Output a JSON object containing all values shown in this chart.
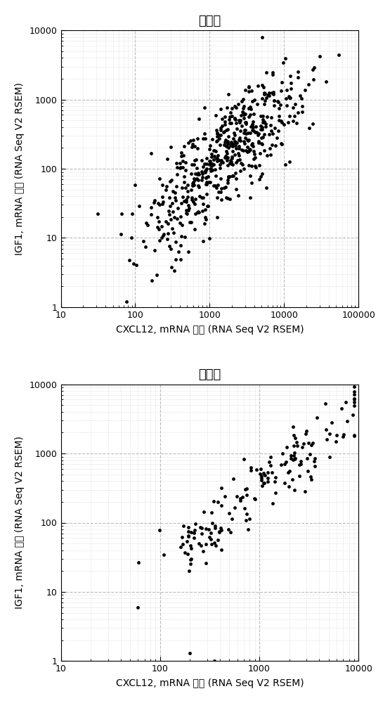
{
  "title1": "乳腺癌",
  "title2": "胰腺癌",
  "xlabel": "CXCL12, mRNA 表达 (RNA Seq V2 RSEM)",
  "ylabel": "IGF1, mRNA 表达 (RNA Seq V2 RSEM)",
  "plot1_xlim": [
    10,
    100000
  ],
  "plot1_ylim": [
    1,
    10000
  ],
  "plot2_xlim": [
    10,
    10000
  ],
  "plot2_ylim": [
    1,
    10000
  ],
  "dot_color": "#000000",
  "dot_size": 12,
  "background_color": "#ffffff",
  "grid_major_color": "#bbbbbb",
  "grid_minor_color": "#dddddd",
  "title_fontsize": 13,
  "label_fontsize": 10,
  "tick_fontsize": 9
}
